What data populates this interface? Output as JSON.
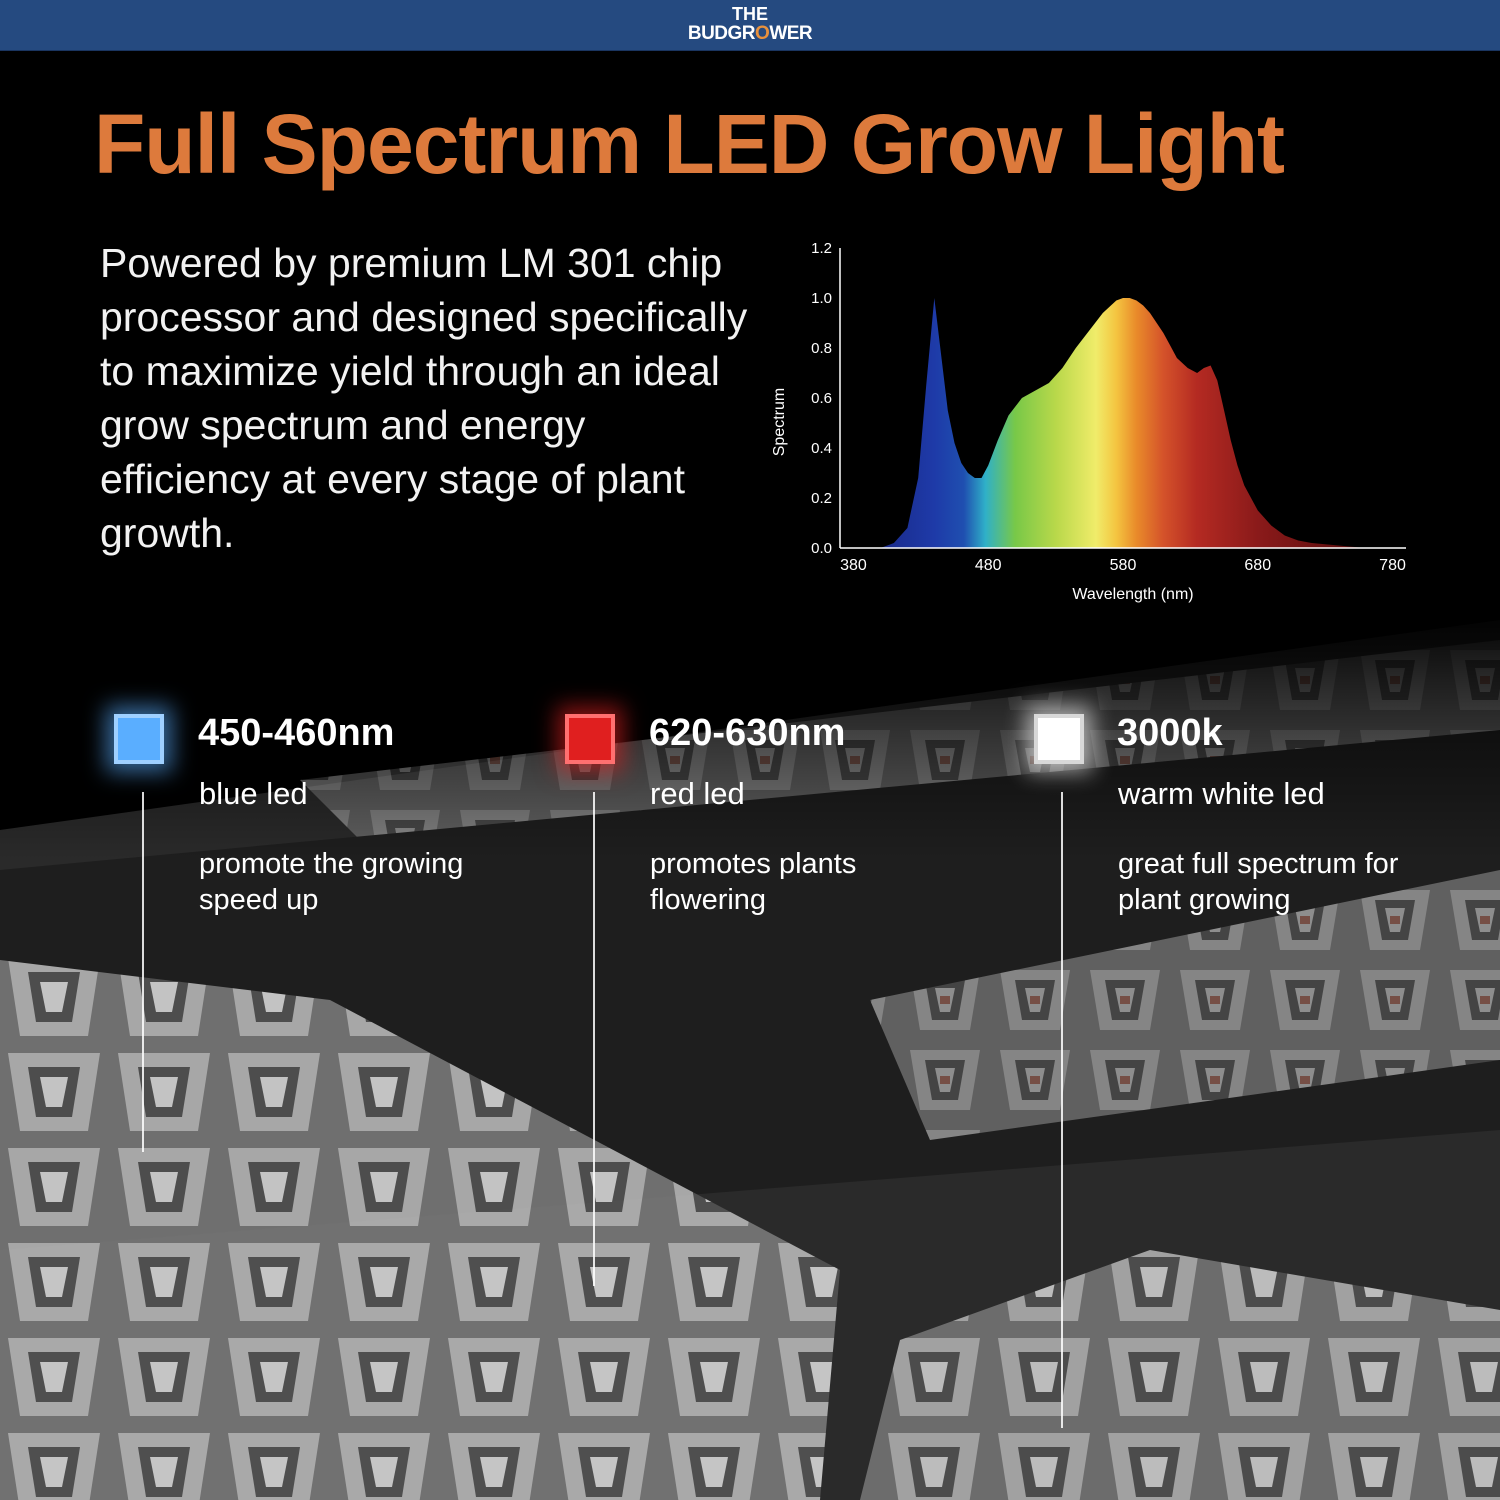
{
  "brand": {
    "line1": "THE",
    "line2a": "BUDGR",
    "line2b": "O",
    "line2c": "WER"
  },
  "title": "Full Spectrum LED Grow Light",
  "intro": "Powered by premium LM 301 chip processor and designed specifically to maximize yield through an ideal grow spectrum and energy efficiency at every stage of plant growth.",
  "chart_data": {
    "type": "area",
    "title": "",
    "xlabel": "Wavelength (nm)",
    "ylabel": "Spectrum",
    "xlim": [
      370,
      790
    ],
    "ylim": [
      0,
      1.2
    ],
    "xticks": [
      380,
      480,
      580,
      680,
      780
    ],
    "yticks": [
      "0.0",
      "0.2",
      "0.4",
      "0.6",
      "0.8",
      "1.0",
      "1.2"
    ],
    "grid": false,
    "series": [
      {
        "x": [
          400,
          410,
          420,
          428,
          434,
          440,
          444,
          450,
          455,
          460,
          465,
          470,
          475,
          480,
          487,
          495,
          505,
          515,
          525,
          535,
          545,
          555,
          565,
          575,
          580,
          585,
          590,
          595,
          600,
          605,
          610,
          615,
          620,
          628,
          635,
          640,
          645,
          650,
          655,
          660,
          665,
          670,
          680,
          690,
          700,
          710,
          720,
          740,
          760,
          780
        ],
        "y": [
          0.0,
          0.02,
          0.08,
          0.28,
          0.65,
          1.0,
          0.82,
          0.55,
          0.42,
          0.34,
          0.3,
          0.28,
          0.28,
          0.33,
          0.43,
          0.53,
          0.6,
          0.63,
          0.66,
          0.72,
          0.8,
          0.87,
          0.94,
          0.99,
          1.0,
          1.0,
          0.99,
          0.97,
          0.94,
          0.9,
          0.86,
          0.81,
          0.76,
          0.72,
          0.7,
          0.72,
          0.73,
          0.67,
          0.55,
          0.43,
          0.33,
          0.25,
          0.15,
          0.09,
          0.05,
          0.03,
          0.02,
          0.01,
          0.0,
          0.0
        ]
      }
    ]
  },
  "features": [
    {
      "value": "450-460nm",
      "type": "blue led",
      "desc": "promote the growing speed up",
      "color": "#5aaeff"
    },
    {
      "value": "620-630nm",
      "type": "red led",
      "desc": "promotes plants flowering",
      "color": "#e01f1f"
    },
    {
      "value": "3000k",
      "type": "warm white led",
      "desc": "great full spectrum for plant growing",
      "color": "#ffffff"
    }
  ]
}
